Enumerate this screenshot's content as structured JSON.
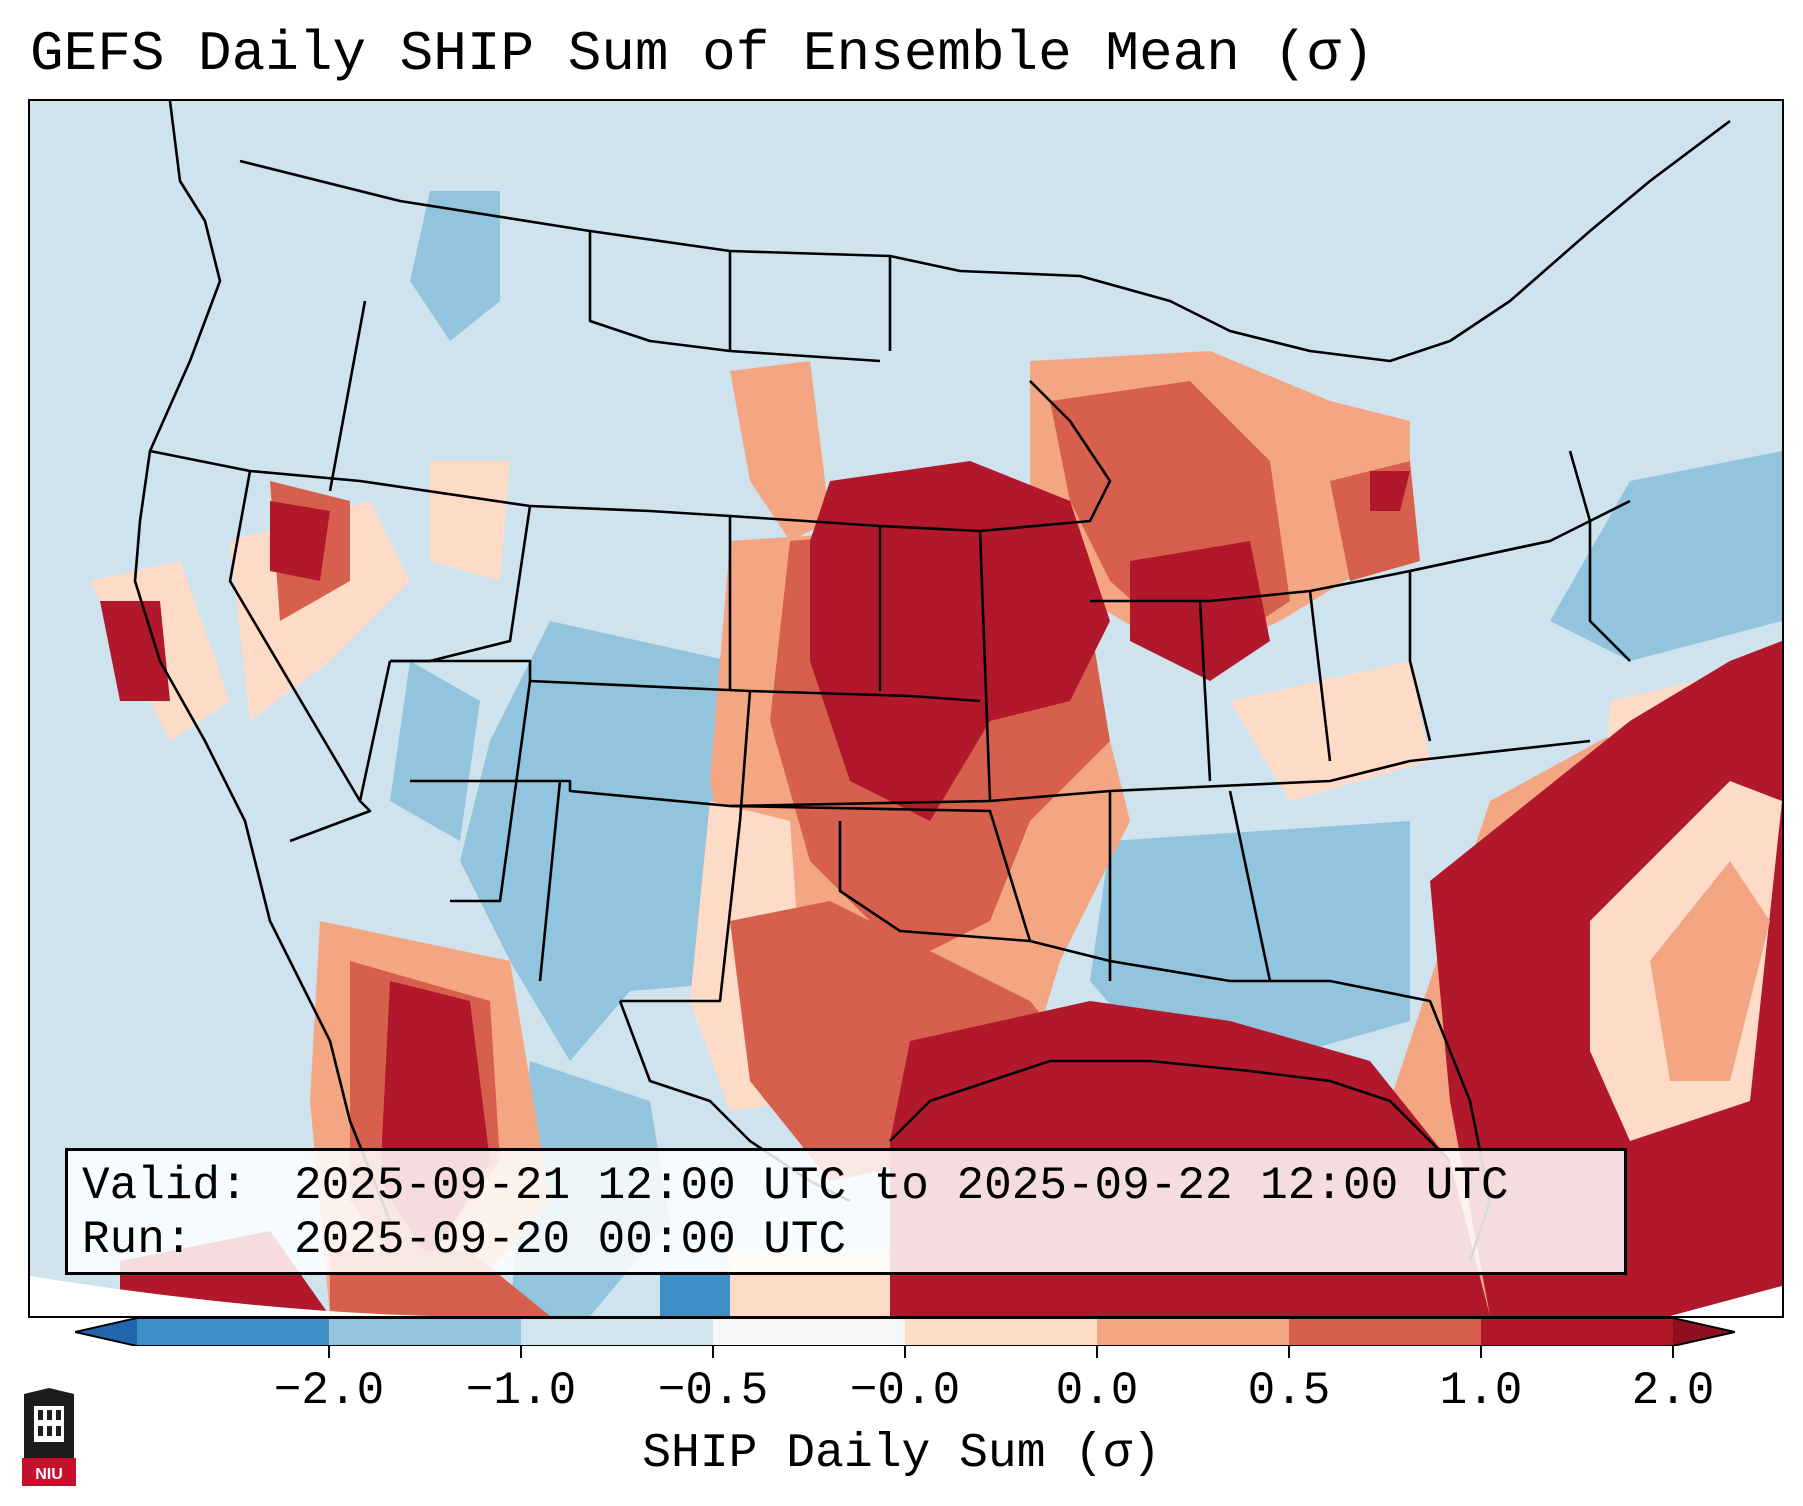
{
  "title": "GEFS Daily SHIP Sum of Ensemble Mean (σ)",
  "info": {
    "valid_label": "Valid:",
    "valid_value": "2025-09-21 12:00 UTC to 2025-09-22 12:00 UTC",
    "run_label": "Run:",
    "run_value": "2025-09-20 00:00 UTC"
  },
  "colorbar": {
    "label": "SHIP Daily Sum (σ)",
    "ticks": [
      "−2.0",
      "−1.0",
      "−0.5",
      "−0.0",
      "0.0",
      "0.5",
      "1.0",
      "2.0"
    ],
    "colors": [
      "#3e8fc6",
      "#92c4de",
      "#d1e5f0",
      "#f7f7f7",
      "#fddbc7",
      "#f4a582",
      "#d6604d",
      "#b2182b"
    ],
    "extend_low_color": "#2166ac",
    "extend_high_color": "#8e0f1f"
  },
  "logo": {
    "text": "NIU",
    "icon": "university-seal-icon"
  },
  "colors": {
    "background_fill": "#cfe3ef",
    "state_lines": "#000000"
  }
}
